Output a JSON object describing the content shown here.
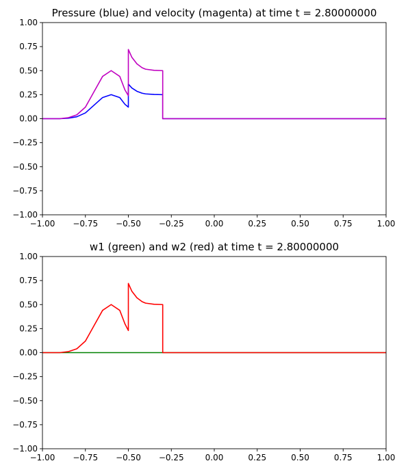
{
  "chart_data": [
    {
      "type": "line",
      "title": "Pressure (blue) and velocity (magenta) at time t =     2.80000000",
      "xlabel": "",
      "ylabel": "",
      "xlim": [
        -1.0,
        1.0
      ],
      "ylim": [
        -1.0,
        1.0
      ],
      "x_ticks": [
        "−1.00",
        "−0.75",
        "−0.50",
        "−0.25",
        "0.00",
        "0.25",
        "0.50",
        "0.75",
        "1.00"
      ],
      "y_ticks": [
        "−1.00",
        "−0.75",
        "−0.50",
        "−0.25",
        "0.00",
        "0.25",
        "0.50",
        "0.75",
        "1.00"
      ],
      "grid": false,
      "series": [
        {
          "color": "#0000ff",
          "x": [
            -1.0,
            -0.9,
            -0.85,
            -0.8,
            -0.75,
            -0.7,
            -0.65,
            -0.6,
            -0.55,
            -0.52,
            -0.5,
            -0.5,
            -0.48,
            -0.45,
            -0.42,
            -0.4,
            -0.35,
            -0.3,
            -0.3,
            1.0
          ],
          "y": [
            0.0,
            0.0,
            0.005,
            0.02,
            0.06,
            0.14,
            0.22,
            0.25,
            0.22,
            0.15,
            0.12,
            0.36,
            0.32,
            0.285,
            0.265,
            0.258,
            0.252,
            0.25,
            0.0,
            0.0
          ]
        },
        {
          "color": "#c000c0",
          "x": [
            -1.0,
            -0.9,
            -0.85,
            -0.8,
            -0.75,
            -0.7,
            -0.65,
            -0.6,
            -0.55,
            -0.52,
            -0.5,
            -0.5,
            -0.48,
            -0.45,
            -0.42,
            -0.4,
            -0.35,
            -0.3,
            -0.3,
            1.0
          ],
          "y": [
            0.0,
            0.0,
            0.01,
            0.04,
            0.12,
            0.28,
            0.44,
            0.5,
            0.44,
            0.3,
            0.24,
            0.72,
            0.64,
            0.57,
            0.53,
            0.515,
            0.503,
            0.5,
            0.0,
            0.0
          ]
        }
      ]
    },
    {
      "type": "line",
      "title": "w1 (green) and w2 (red) at time t =     2.80000000",
      "xlabel": "",
      "ylabel": "",
      "xlim": [
        -1.0,
        1.0
      ],
      "ylim": [
        -1.0,
        1.0
      ],
      "x_ticks": [
        "−1.00",
        "−0.75",
        "−0.50",
        "−0.25",
        "0.00",
        "0.25",
        "0.50",
        "0.75",
        "1.00"
      ],
      "y_ticks": [
        "−1.00",
        "−0.75",
        "−0.50",
        "−0.25",
        "0.00",
        "0.25",
        "0.50",
        "0.75",
        "1.00"
      ],
      "grid": false,
      "series": [
        {
          "color": "#008000",
          "x": [
            -1.0,
            1.0
          ],
          "y": [
            0.0,
            0.0
          ]
        },
        {
          "color": "#ff0000",
          "x": [
            -1.0,
            -0.9,
            -0.85,
            -0.8,
            -0.75,
            -0.7,
            -0.65,
            -0.6,
            -0.55,
            -0.52,
            -0.5,
            -0.5,
            -0.48,
            -0.45,
            -0.42,
            -0.4,
            -0.35,
            -0.3,
            -0.3,
            1.0
          ],
          "y": [
            0.0,
            0.0,
            0.01,
            0.04,
            0.12,
            0.28,
            0.44,
            0.5,
            0.44,
            0.3,
            0.23,
            0.72,
            0.64,
            0.57,
            0.53,
            0.515,
            0.503,
            0.5,
            0.0,
            0.0
          ]
        }
      ]
    }
  ]
}
